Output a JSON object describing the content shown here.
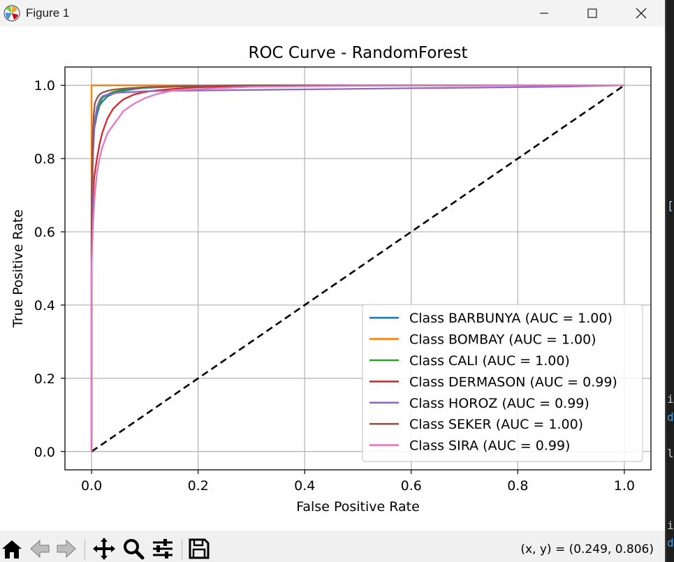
{
  "window": {
    "title": "Figure 1"
  },
  "toolbar": {
    "buttons": [
      "home-icon",
      "back-icon",
      "forward-icon",
      "pan-icon",
      "zoom-icon",
      "configure-subplots-icon",
      "save-icon"
    ],
    "coords": "(x, y) = (0.249, 0.806)"
  },
  "side_strip": {
    "chars": [
      "[",
      "i",
      "d",
      "l",
      "i",
      "d"
    ]
  },
  "chart_data": {
    "type": "line",
    "title": "ROC Curve - RandomForest",
    "xlabel": "False Positive Rate",
    "ylabel": "True Positive Rate",
    "xlim": [
      -0.05,
      1.05
    ],
    "ylim": [
      -0.05,
      1.05
    ],
    "xticks": [
      "0.0",
      "0.2",
      "0.4",
      "0.6",
      "0.8",
      "1.0"
    ],
    "yticks": [
      "0.0",
      "0.2",
      "0.4",
      "0.6",
      "0.8",
      "1.0"
    ],
    "grid": true,
    "legend_position": "lower right",
    "series": [
      {
        "name": "Class BARBUNYA (AUC = 1.00)",
        "color": "#1f77b4",
        "x": [
          0,
          0,
          0.002,
          0.005,
          0.01,
          0.015,
          0.02,
          0.03,
          0.045,
          0.06,
          0.08,
          0.1,
          0.15,
          0.2,
          0.3,
          0.5,
          1.0
        ],
        "y": [
          0,
          0.6,
          0.8,
          0.88,
          0.92,
          0.945,
          0.955,
          0.97,
          0.98,
          0.985,
          0.99,
          0.993,
          0.996,
          0.998,
          0.999,
          1.0,
          1.0
        ]
      },
      {
        "name": "Class BOMBAY (AUC = 1.00)",
        "color": "#ff7f0e",
        "x": [
          0,
          0,
          1.0
        ],
        "y": [
          0,
          1.0,
          1.0
        ]
      },
      {
        "name": "Class CALI (AUC = 1.00)",
        "color": "#2ca02c",
        "x": [
          0,
          0,
          0.002,
          0.005,
          0.01,
          0.015,
          0.02,
          0.03,
          0.04,
          0.06,
          0.08,
          0.1,
          0.15,
          0.2,
          0.3,
          0.5,
          1.0
        ],
        "y": [
          0,
          0.65,
          0.85,
          0.9,
          0.935,
          0.95,
          0.965,
          0.975,
          0.982,
          0.988,
          0.992,
          0.994,
          0.997,
          0.998,
          0.999,
          1.0,
          1.0
        ]
      },
      {
        "name": "Class DERMASON (AUC = 0.99)",
        "color": "#d62728",
        "x": [
          0,
          0,
          0.002,
          0.005,
          0.01,
          0.015,
          0.02,
          0.025,
          0.03,
          0.04,
          0.05,
          0.06,
          0.08,
          0.1,
          0.12,
          0.15,
          0.2,
          0.3,
          0.5,
          1.0
        ],
        "y": [
          0,
          0.55,
          0.68,
          0.75,
          0.8,
          0.84,
          0.87,
          0.89,
          0.91,
          0.935,
          0.95,
          0.962,
          0.975,
          0.982,
          0.986,
          0.99,
          0.995,
          0.998,
          1.0,
          1.0
        ]
      },
      {
        "name": "Class HOROZ (AUC = 0.99)",
        "color": "#9467bd",
        "x": [
          0,
          0,
          0.003,
          0.006,
          0.01,
          0.015,
          0.02,
          0.03,
          0.05,
          0.08,
          0.1,
          0.2,
          0.4,
          0.6,
          0.8,
          0.9,
          1.0
        ],
        "y": [
          0,
          0.6,
          0.82,
          0.9,
          0.94,
          0.96,
          0.97,
          0.975,
          0.98,
          0.982,
          0.984,
          0.986,
          0.989,
          0.992,
          0.995,
          0.997,
          1.0
        ]
      },
      {
        "name": "Class SEKER (AUC = 1.00)",
        "color": "#8c564b",
        "x": [
          0,
          0,
          0.002,
          0.004,
          0.006,
          0.01,
          0.015,
          0.02,
          0.03,
          0.04,
          0.06,
          0.08,
          0.1,
          0.15,
          0.2,
          0.3,
          1.0
        ],
        "y": [
          0,
          0.7,
          0.86,
          0.92,
          0.95,
          0.965,
          0.975,
          0.98,
          0.985,
          0.988,
          0.991,
          0.993,
          0.995,
          0.997,
          0.998,
          1.0,
          1.0
        ]
      },
      {
        "name": "Class SIRA (AUC = 0.99)",
        "color": "#e377c2",
        "x": [
          0,
          0,
          0.003,
          0.006,
          0.01,
          0.015,
          0.02,
          0.03,
          0.04,
          0.05,
          0.06,
          0.08,
          0.1,
          0.12,
          0.15,
          0.2,
          0.3,
          0.5,
          1.0
        ],
        "y": [
          0,
          0.5,
          0.63,
          0.7,
          0.76,
          0.8,
          0.83,
          0.87,
          0.89,
          0.91,
          0.93,
          0.95,
          0.965,
          0.975,
          0.985,
          0.99,
          0.996,
          0.999,
          1.0
        ]
      }
    ],
    "reference_line": {
      "x": [
        0,
        1
      ],
      "y": [
        0,
        1
      ],
      "color": "#000000",
      "style": "dashed"
    }
  }
}
